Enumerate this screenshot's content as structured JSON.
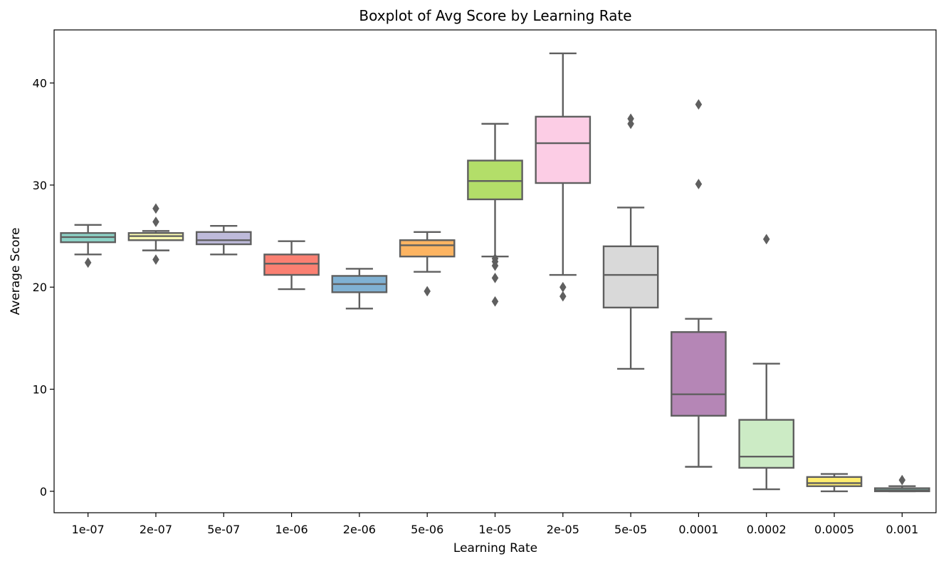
{
  "chart_data": {
    "type": "boxplot",
    "title": "Boxplot of Avg Score by Learning Rate",
    "xlabel": "Learning Rate",
    "ylabel": "Average Score",
    "ylim": [
      -2.1,
      45.2
    ],
    "yticks": [
      0,
      10,
      20,
      30,
      40
    ],
    "grid": false,
    "box_edge_color": "#5f5f5f",
    "categories": [
      "1e-07",
      "2e-07",
      "5e-07",
      "1e-06",
      "2e-06",
      "5e-06",
      "1e-05",
      "2e-05",
      "5e-05",
      "0.0001",
      "0.0002",
      "0.0005",
      "0.001"
    ],
    "boxes": [
      {
        "label": "1e-07",
        "color": "#8dd3c7",
        "whisker_low": 23.2,
        "q1": 24.4,
        "median": 24.9,
        "q3": 25.3,
        "whisker_high": 26.1,
        "outliers": [
          22.4
        ]
      },
      {
        "label": "2e-07",
        "color": "#ffffb3",
        "whisker_low": 23.6,
        "q1": 24.6,
        "median": 25.0,
        "q3": 25.3,
        "whisker_high": 25.5,
        "outliers": [
          22.7,
          26.4,
          27.7
        ]
      },
      {
        "label": "5e-07",
        "color": "#bebada",
        "whisker_low": 23.2,
        "q1": 24.2,
        "median": 24.6,
        "q3": 25.4,
        "whisker_high": 26.0,
        "outliers": []
      },
      {
        "label": "1e-06",
        "color": "#fb8072",
        "whisker_low": 19.8,
        "q1": 21.2,
        "median": 22.3,
        "q3": 23.2,
        "whisker_high": 24.5,
        "outliers": []
      },
      {
        "label": "2e-06",
        "color": "#80b1d3",
        "whisker_low": 17.9,
        "q1": 19.5,
        "median": 20.3,
        "q3": 21.1,
        "whisker_high": 21.8,
        "outliers": []
      },
      {
        "label": "5e-06",
        "color": "#fdb462",
        "whisker_low": 21.5,
        "q1": 23.0,
        "median": 24.1,
        "q3": 24.6,
        "whisker_high": 25.4,
        "outliers": [
          19.6
        ]
      },
      {
        "label": "1e-05",
        "color": "#b3de69",
        "whisker_low": 23.0,
        "q1": 28.6,
        "median": 30.4,
        "q3": 32.4,
        "whisker_high": 36.0,
        "outliers": [
          18.6,
          20.9,
          22.1,
          22.5,
          22.8
        ]
      },
      {
        "label": "2e-05",
        "color": "#fccde5",
        "whisker_low": 21.2,
        "q1": 30.2,
        "median": 34.1,
        "q3": 36.7,
        "whisker_high": 42.9,
        "outliers": [
          19.1,
          20.0
        ]
      },
      {
        "label": "5e-05",
        "color": "#d9d9d9",
        "whisker_low": 12.0,
        "q1": 18.0,
        "median": 21.2,
        "q3": 24.0,
        "whisker_high": 27.8,
        "outliers": [
          36.0,
          36.5
        ]
      },
      {
        "label": "0.0001",
        "color": "#b586b6",
        "whisker_low": 2.4,
        "q1": 7.4,
        "median": 9.5,
        "q3": 15.6,
        "whisker_high": 16.9,
        "outliers": [
          30.1,
          37.9
        ]
      },
      {
        "label": "0.0002",
        "color": "#ccebc5",
        "whisker_low": 0.2,
        "q1": 2.3,
        "median": 3.4,
        "q3": 7.0,
        "whisker_high": 12.5,
        "outliers": [
          24.7
        ]
      },
      {
        "label": "0.0005",
        "color": "#ffed6f",
        "whisker_low": 0.0,
        "q1": 0.5,
        "median": 0.8,
        "q3": 1.4,
        "whisker_high": 1.7,
        "outliers": []
      },
      {
        "label": "0.001",
        "color": "#8dd3c7",
        "whisker_low": 0.0,
        "q1": 0.0,
        "median": 0.1,
        "q3": 0.3,
        "whisker_high": 0.5,
        "outliers": [
          1.1
        ]
      }
    ]
  }
}
